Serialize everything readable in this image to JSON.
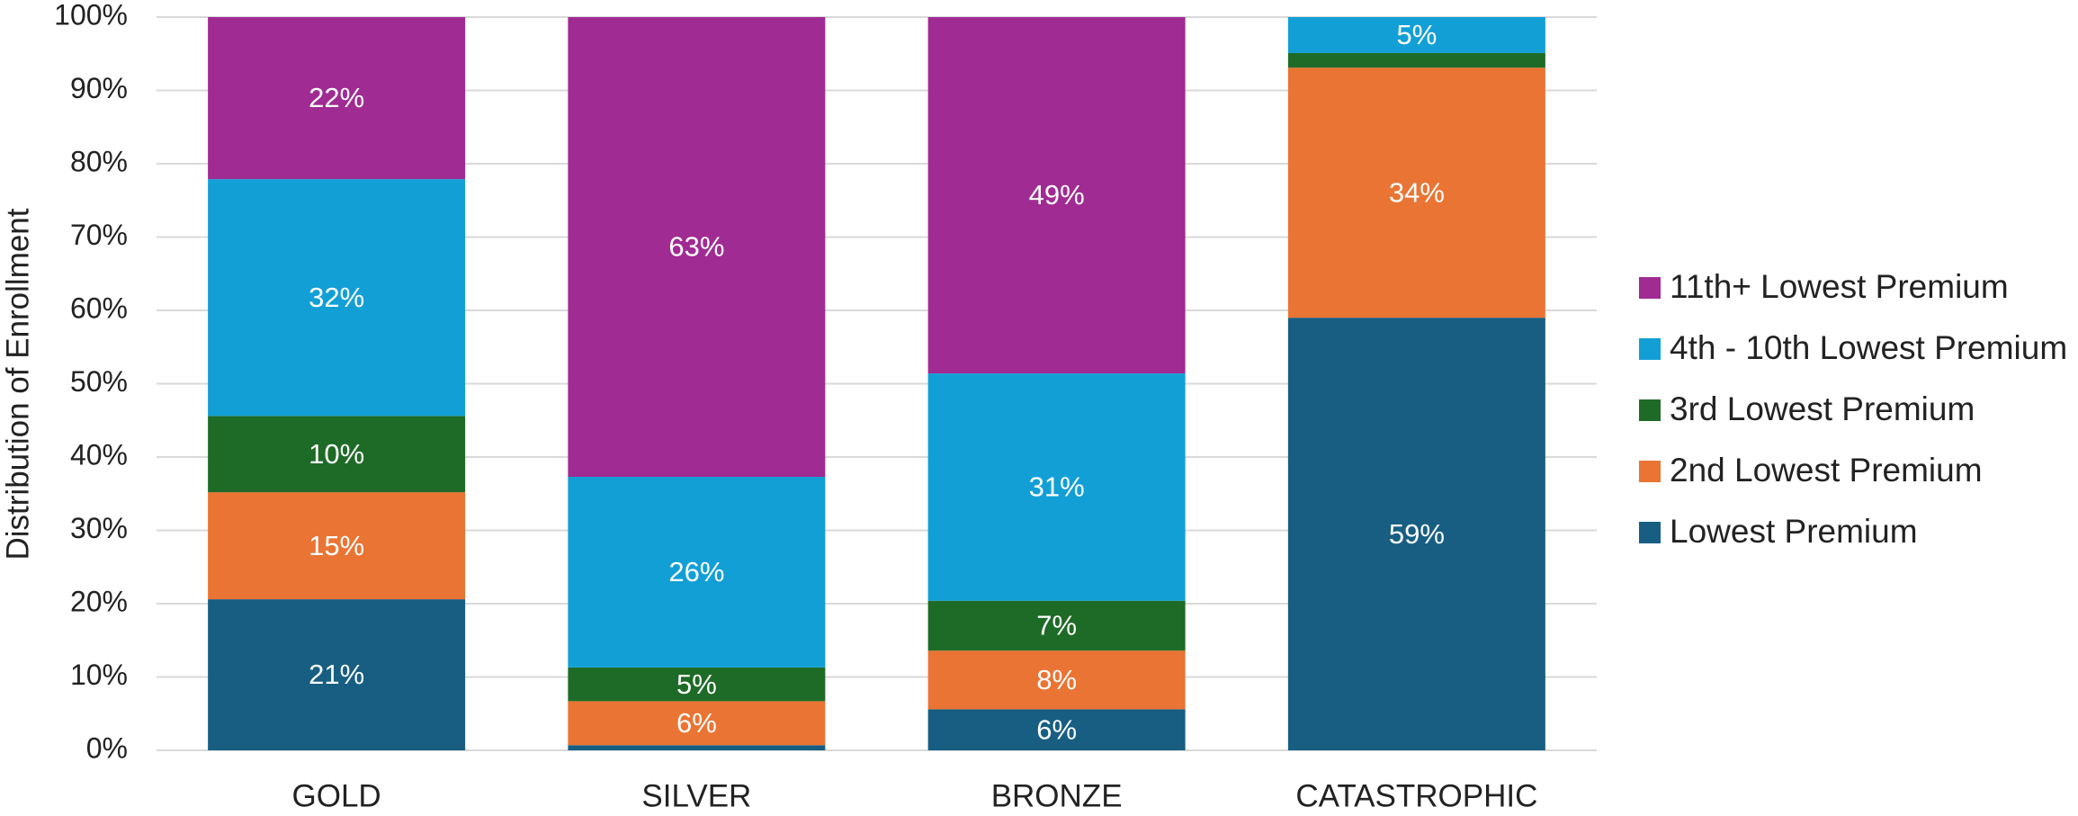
{
  "chart_data": {
    "type": "stacked_bar",
    "y_axis_label": "Distribution of Enrollment",
    "categories": [
      "GOLD",
      "SILVER",
      "BRONZE",
      "CATASTROPHIC"
    ],
    "series": [
      {
        "name": "Lowest Premium",
        "color": "#175e82",
        "values": [
          20.6,
          0.7,
          5.6,
          59.0
        ],
        "value_labels": [
          "21%",
          null,
          "6%",
          "59%"
        ]
      },
      {
        "name": "2nd Lowest Premium",
        "color": "#ea7433",
        "values": [
          14.6,
          6.0,
          8.0,
          34.1
        ],
        "value_labels": [
          "15%",
          "6%",
          "8%",
          "34%"
        ]
      },
      {
        "name": "3rd Lowest Premium",
        "color": "#1e6b27",
        "values": [
          10.4,
          4.6,
          6.8,
          2.0
        ],
        "value_labels": [
          "10%",
          "5%",
          "7%",
          null
        ]
      },
      {
        "name": "4th - 10th Lowest Premium",
        "color": "#129fd6",
        "values": [
          32.3,
          26.0,
          31.0,
          4.9
        ],
        "value_labels": [
          "32%",
          "26%",
          "31%",
          "5%"
        ]
      },
      {
        "name": "11th+ Lowest Premium",
        "color": "#a02b93",
        "values": [
          22.1,
          62.7,
          48.6,
          0
        ],
        "value_labels": [
          "22%",
          "63%",
          "49%",
          null
        ]
      }
    ],
    "ylim": [
      0,
      100
    ],
    "yticks": [
      {
        "value": 0,
        "label": "0%"
      },
      {
        "value": 10,
        "label": "10%"
      },
      {
        "value": 20,
        "label": "20%"
      },
      {
        "value": 30,
        "label": "30%"
      },
      {
        "value": 40,
        "label": "40%"
      },
      {
        "value": 50,
        "label": "50%"
      },
      {
        "value": 60,
        "label": "60%"
      },
      {
        "value": 70,
        "label": "70%"
      },
      {
        "value": 80,
        "label": "80%"
      },
      {
        "value": 90,
        "label": "90%"
      },
      {
        "value": 100,
        "label": "100%"
      }
    ],
    "grid": true,
    "legend": "right"
  }
}
